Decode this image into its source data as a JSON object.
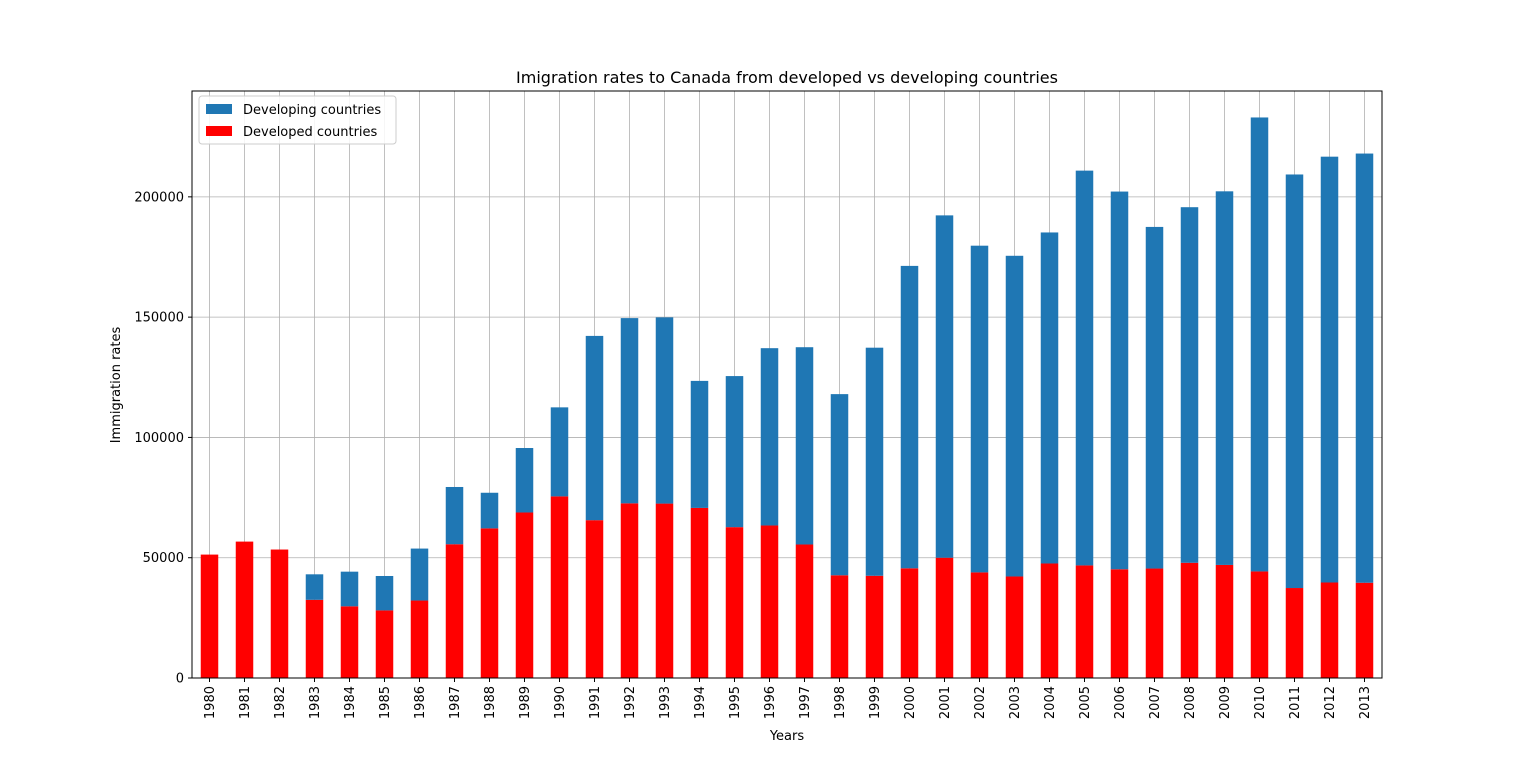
{
  "chart_data": {
    "type": "bar",
    "stacked": true,
    "title": "Imigration rates to Canada from developed vs developing countries",
    "xlabel": "Years",
    "ylabel": "Immigration rates",
    "ylim": [
      0,
      244000
    ],
    "yticks": [
      0,
      50000,
      100000,
      150000,
      200000
    ],
    "ytick_labels": [
      "0",
      "50000",
      "100000",
      "150000",
      "200000"
    ],
    "grid": true,
    "legend_position": "top-left",
    "categories": [
      "1980",
      "1981",
      "1982",
      "1983",
      "1984",
      "1985",
      "1986",
      "1987",
      "1988",
      "1989",
      "1990",
      "1991",
      "1992",
      "1993",
      "1994",
      "1995",
      "1996",
      "1997",
      "1998",
      "1999",
      "2000",
      "2001",
      "2002",
      "2003",
      "2004",
      "2005",
      "2006",
      "2007",
      "2008",
      "2009",
      "2010",
      "2011",
      "2012",
      "2013"
    ],
    "series": [
      {
        "name": "Developed countries",
        "color": "#ff0000",
        "values": [
          51300,
          56700,
          53400,
          32500,
          29800,
          28100,
          32200,
          55600,
          62200,
          68800,
          75500,
          65600,
          72600,
          72500,
          70700,
          62700,
          63400,
          55500,
          42700,
          42500,
          45600,
          50000,
          43900,
          42200,
          47600,
          46800,
          45200,
          45500,
          47900,
          47000,
          44300,
          37400,
          39700,
          39600
        ]
      },
      {
        "name": "Developing countries",
        "color": "#1f77b4",
        "values": [
          0,
          0,
          0,
          10600,
          14400,
          14300,
          21600,
          23800,
          14800,
          26800,
          37000,
          76600,
          77000,
          77400,
          52800,
          62800,
          73700,
          82000,
          75300,
          94800,
          125700,
          142300,
          135800,
          133300,
          137600,
          164100,
          157000,
          142000,
          147800,
          155300,
          188700,
          171900,
          177000,
          178400
        ]
      }
    ]
  }
}
